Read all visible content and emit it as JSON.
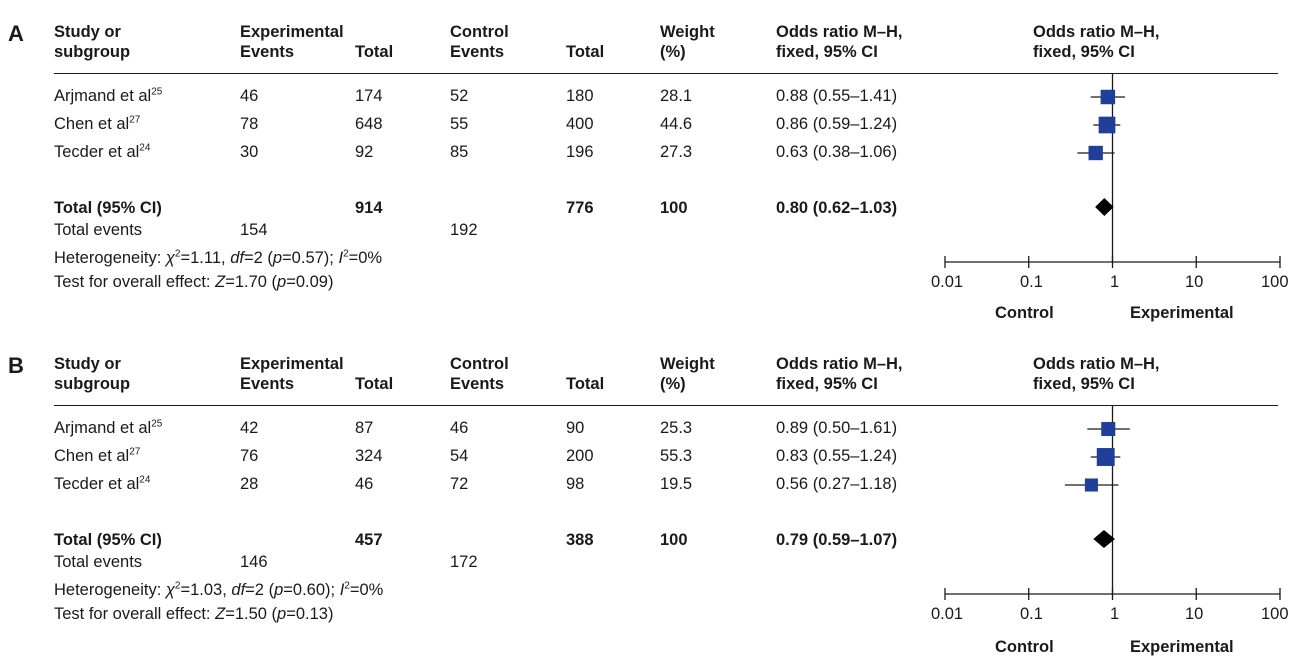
{
  "panels": [
    {
      "letter": "A",
      "headers": {
        "study_line1": "Study or",
        "study_line2": "subgroup",
        "experimental": "Experimental",
        "exp_events": "Events",
        "exp_total": "Total",
        "control": "Control",
        "ctrl_events": "Events",
        "ctrl_total": "Total",
        "weight_line1": "Weight",
        "weight_line2": "(%)",
        "or_line1": "Odds ratio M–H,",
        "or_line2": "fixed, 95% CI",
        "plot_line1": "Odds ratio M–H,",
        "plot_line2": "fixed, 95% CI"
      },
      "rows": [
        {
          "study": "Arjmand et al",
          "ref": "25",
          "exp_events": "46",
          "exp_total": "174",
          "ctrl_events": "52",
          "ctrl_total": "180",
          "weight": "28.1",
          "or_text": "0.88 (0.55–1.41)"
        },
        {
          "study": "Chen et al",
          "ref": "27",
          "exp_events": "78",
          "exp_total": "648",
          "ctrl_events": "55",
          "ctrl_total": "400",
          "weight": "44.6",
          "or_text": "0.86 (0.59–1.24)"
        },
        {
          "study": "Tecder et al",
          "ref": "24",
          "exp_events": "30",
          "exp_total": "92",
          "ctrl_events": "85",
          "ctrl_total": "196",
          "weight": "27.3",
          "or_text": "0.63 (0.38–1.06)"
        }
      ],
      "total": {
        "label": "Total (95% CI)",
        "exp_total": "914",
        "ctrl_total": "776",
        "weight": "100",
        "or_text": "0.80 (0.62–1.03)"
      },
      "total_events": {
        "label": "Total events",
        "exp": "154",
        "ctrl": "192"
      },
      "heterogeneity": {
        "label": "Heterogeneity: ",
        "chi_sym": "χ",
        "chi_sup": "2",
        "chi_val": "=1.11, ",
        "df_sym": "df",
        "df_val": "=2 (",
        "p_sym": "p",
        "p_val": "=0.57); ",
        "i_sym": "I",
        "i_sup": "2",
        "i_val": "=0%"
      },
      "overall": {
        "label": "Test for overall effect: ",
        "z_sym": "Z",
        "z_val": "=1.70 (",
        "p_sym": "p",
        "p_val": "=0.09)"
      },
      "axis": {
        "ticks": [
          "0.01",
          "0.1",
          "1",
          "10",
          "100"
        ],
        "left_label": "Control",
        "right_label": "Experimental"
      }
    },
    {
      "letter": "B",
      "headers": {
        "study_line1": "Study or",
        "study_line2": "subgroup",
        "experimental": "Experimental",
        "exp_events": "Events",
        "exp_total": "Total",
        "control": "Control",
        "ctrl_events": "Events",
        "ctrl_total": "Total",
        "weight_line1": "Weight",
        "weight_line2": "(%)",
        "or_line1": "Odds ratio M–H,",
        "or_line2": "fixed, 95% CI",
        "plot_line1": "Odds ratio M–H,",
        "plot_line2": "fixed, 95% CI"
      },
      "rows": [
        {
          "study": "Arjmand et al",
          "ref": "25",
          "exp_events": "42",
          "exp_total": "87",
          "ctrl_events": "46",
          "ctrl_total": "90",
          "weight": "25.3",
          "or_text": "0.89 (0.50–1.61)"
        },
        {
          "study": "Chen et al",
          "ref": "27",
          "exp_events": "76",
          "exp_total": "324",
          "ctrl_events": "54",
          "ctrl_total": "200",
          "weight": "55.3",
          "or_text": "0.83 (0.55–1.24)"
        },
        {
          "study": "Tecder et al",
          "ref": "24",
          "exp_events": "28",
          "exp_total": "46",
          "ctrl_events": "72",
          "ctrl_total": "98",
          "weight": "19.5",
          "or_text": "0.56 (0.27–1.18)"
        }
      ],
      "total": {
        "label": "Total (95% CI)",
        "exp_total": "457",
        "ctrl_total": "388",
        "weight": "100",
        "or_text": "0.79 (0.59–1.07)"
      },
      "total_events": {
        "label": "Total events",
        "exp": "146",
        "ctrl": "172"
      },
      "heterogeneity": {
        "label": "Heterogeneity: ",
        "chi_sym": "χ",
        "chi_sup": "2",
        "chi_val": "=1.03, ",
        "df_sym": "df",
        "df_val": "=2 (",
        "p_sym": "p",
        "p_val": "=0.60); ",
        "i_sym": "I",
        "i_sup": "2",
        "i_val": "=0%"
      },
      "overall": {
        "label": "Test for overall effect: ",
        "z_sym": "Z",
        "z_val": "=1.50 (",
        "p_sym": "p",
        "p_val": "=0.13)"
      },
      "axis": {
        "ticks": [
          "0.01",
          "0.1",
          "1",
          "10",
          "100"
        ],
        "left_label": "Control",
        "right_label": "Experimental"
      }
    }
  ],
  "colors": {
    "study_marker": "#1f3f9a",
    "pooled_diamond": "#000000",
    "line": "#1a1a1a"
  },
  "chart_data": [
    {
      "type": "forest",
      "x_scale": "log",
      "xlim": [
        0.01,
        100
      ],
      "reference_line": 1,
      "xticks": [
        0.01,
        0.1,
        1,
        10,
        100
      ],
      "studies": [
        {
          "name": "Arjmand et al",
          "or": 0.88,
          "ci": [
            0.55,
            1.41
          ],
          "weight": 28.1
        },
        {
          "name": "Chen et al",
          "or": 0.86,
          "ci": [
            0.59,
            1.24
          ],
          "weight": 44.6
        },
        {
          "name": "Tecder et al",
          "or": 0.63,
          "ci": [
            0.38,
            1.06
          ],
          "weight": 27.3
        }
      ],
      "pooled": {
        "or": 0.8,
        "ci": [
          0.62,
          1.03
        ]
      }
    },
    {
      "type": "forest",
      "x_scale": "log",
      "xlim": [
        0.01,
        100
      ],
      "reference_line": 1,
      "xticks": [
        0.01,
        0.1,
        1,
        10,
        100
      ],
      "studies": [
        {
          "name": "Arjmand et al",
          "or": 0.89,
          "ci": [
            0.5,
            1.61
          ],
          "weight": 25.3
        },
        {
          "name": "Chen et al",
          "or": 0.83,
          "ci": [
            0.55,
            1.24
          ],
          "weight": 55.3
        },
        {
          "name": "Tecder et al",
          "or": 0.56,
          "ci": [
            0.27,
            1.18
          ],
          "weight": 19.5
        }
      ],
      "pooled": {
        "or": 0.79,
        "ci": [
          0.59,
          1.07
        ]
      }
    }
  ]
}
